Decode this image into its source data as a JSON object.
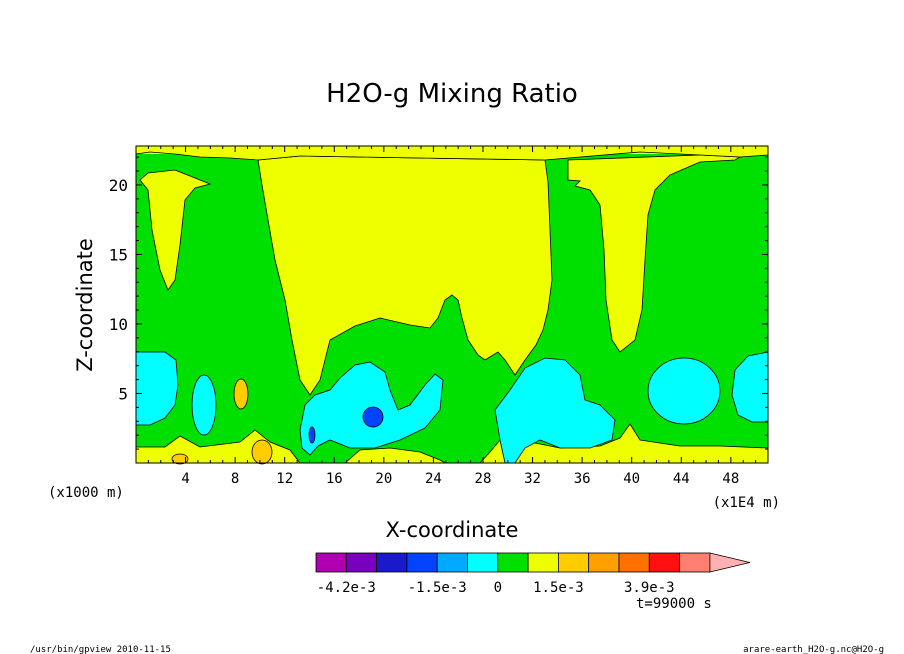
{
  "chart_data": {
    "type": "contour",
    "title": "H2O-g Mixing Ratio",
    "xlabel": "X-coordinate",
    "ylabel": "Z-coordinate",
    "x_unit_left": "(x1000 m)",
    "x_unit_right": "(x1E4 m)",
    "xlim": [
      0,
      51
    ],
    "ylim": [
      0,
      22.8
    ],
    "x_ticks": [
      "4",
      "8",
      "12",
      "16",
      "20",
      "24",
      "28",
      "32",
      "36",
      "40",
      "44",
      "48"
    ],
    "y_ticks": [
      "5",
      "10",
      "15",
      "20"
    ],
    "time_label": "t=99000 s",
    "colorbar": {
      "colors": [
        "#b000b0",
        "#7a00c0",
        "#1a1acc",
        "#0044ff",
        "#00aaff",
        "#00ffff",
        "#00e000",
        "#eeff00",
        "#ffcc00",
        "#ffa000",
        "#ff7000",
        "#ff1010",
        "#ff8070",
        "#ffb0b0"
      ],
      "labels": [
        "-4.2e-3",
        "-1.5e-3",
        "0",
        "1.5e-3",
        "3.9e-3"
      ]
    },
    "field_colors": {
      "yellow": "#eeff00",
      "green": "#00e000",
      "cyan": "#00ffff",
      "blue": "#0044ff",
      "orange": "#ffcc00"
    }
  },
  "footer": {
    "left": "/usr/bin/gpview  2010-11-15",
    "right": "arare-earth_H2O-g.nc@H2O-g"
  }
}
